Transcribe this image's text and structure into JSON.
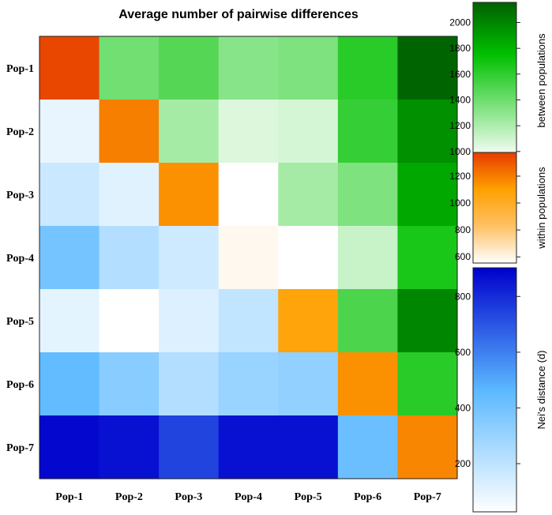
{
  "chart_data": {
    "type": "heatmap",
    "title": "Average number of pairwise differences",
    "row_labels": [
      "Pop-1",
      "Pop-2",
      "Pop-3",
      "Pop-4",
      "Pop-5",
      "Pop-6",
      "Pop-7"
    ],
    "col_labels": [
      "Pop-1",
      "Pop-2",
      "Pop-3",
      "Pop-4",
      "Pop-5",
      "Pop-6",
      "Pop-7"
    ],
    "regions": {
      "upper": "between populations",
      "diagonal": "within populations",
      "lower": "Nei's distance (d)"
    },
    "matrix": [
      [
        1340,
        1390,
        1480,
        1320,
        1350,
        1620,
        2130
      ],
      [
        90,
        1190,
        1230,
        1060,
        1080,
        1580,
        1950
      ],
      [
        170,
        110,
        1140,
        940,
        1230,
        1350,
        1850
      ],
      [
        390,
        230,
        160,
        590,
        590,
        1120,
        1670
      ],
      [
        100,
        20,
        120,
        190,
        1070,
        1510,
        1990
      ],
      [
        440,
        340,
        230,
        300,
        320,
        1140,
        1620
      ],
      [
        880,
        860,
        740,
        860,
        860,
        420,
        1170
      ]
    ],
    "colorbars": [
      {
        "name": "between",
        "label": "between populations",
        "range": [
          950,
          2150
        ],
        "ticks": [
          1000,
          1200,
          1400,
          1600,
          1800,
          2000
        ],
        "stops": [
          "#ffffff",
          "#7ee27e",
          "#00c000",
          "#006000"
        ]
      },
      {
        "name": "within",
        "label": "within populations",
        "range": [
          560,
          1370
        ],
        "ticks": [
          600,
          800,
          1000,
          1200
        ],
        "stops": [
          "#ffffff",
          "#ffc164",
          "#ffa000",
          "#e63c00"
        ]
      },
      {
        "name": "nei",
        "label": "Nei's distance (d)",
        "range": [
          30,
          900
        ],
        "ticks": [
          200,
          400,
          600,
          800
        ],
        "stops": [
          "#ffffff",
          "#5ab8ff",
          "#0000cc"
        ]
      }
    ]
  }
}
